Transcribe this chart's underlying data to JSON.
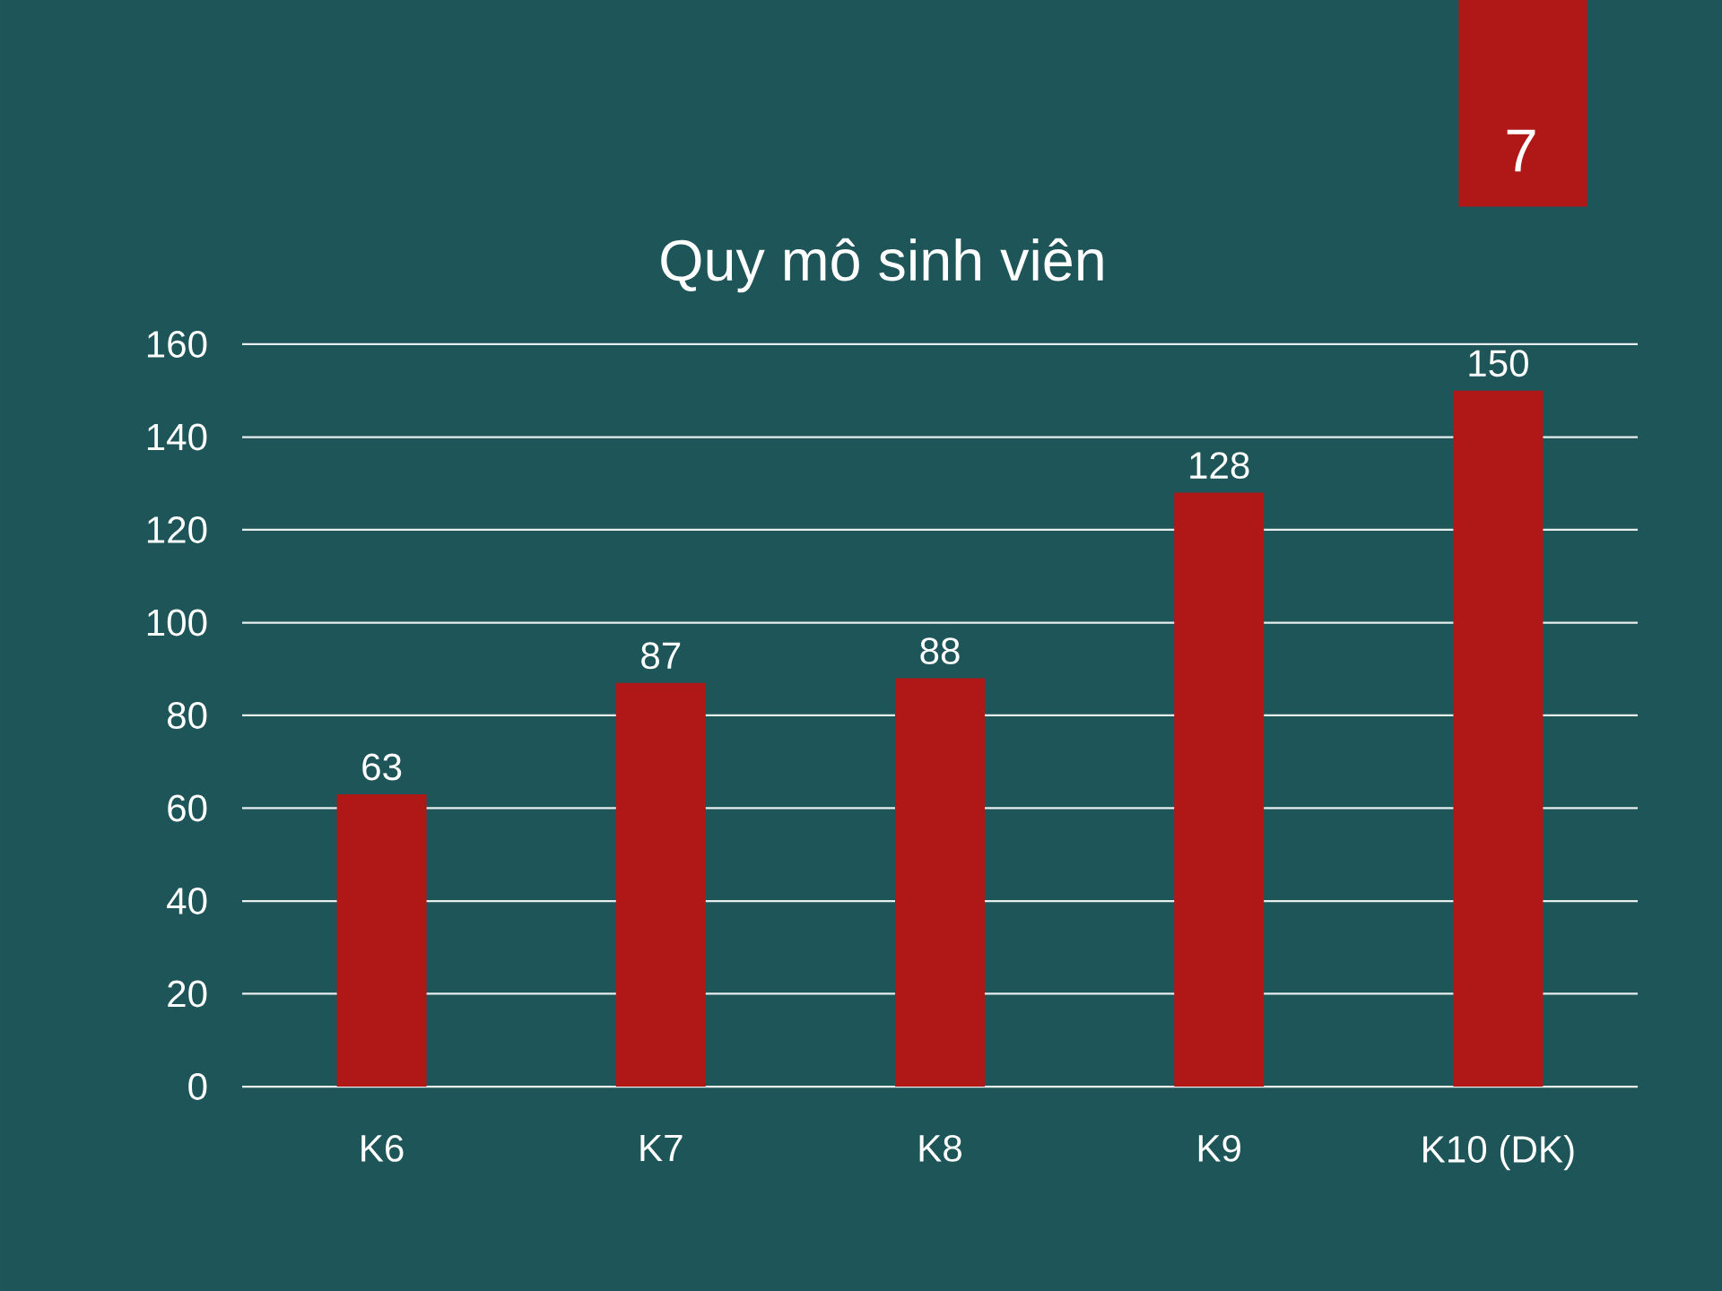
{
  "chart_data": {
    "type": "bar",
    "title": "Quy mô sinh viên",
    "categories": [
      "K6",
      "K7",
      "K8",
      "K9",
      "K10 (DK)"
    ],
    "values": [
      63,
      87,
      88,
      128,
      150
    ],
    "color": "#b01717",
    "ylim": [
      0,
      160
    ],
    "yticks": [
      0,
      20,
      40,
      60,
      80,
      100,
      120,
      140,
      160
    ],
    "grid": "y",
    "data_labels": true,
    "annotations": [
      "7"
    ]
  }
}
